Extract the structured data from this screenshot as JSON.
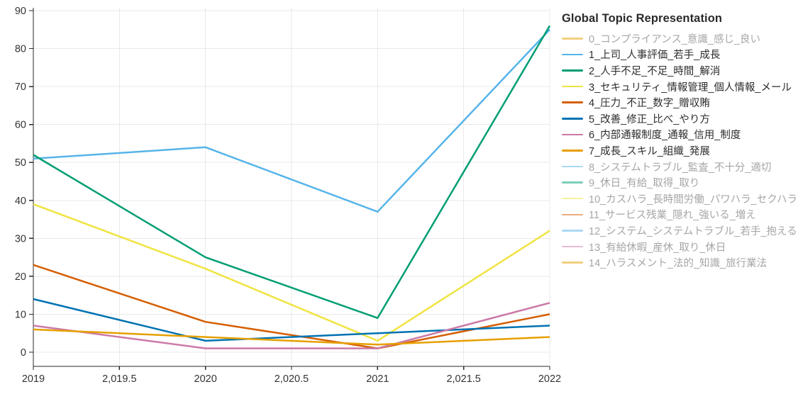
{
  "chart_data": {
    "type": "line",
    "legend_title": "Global Topic Representation",
    "x": [
      2019,
      2020,
      2021,
      2022
    ],
    "x_tick_values": [
      2019,
      2019.5,
      2020,
      2020.5,
      2021,
      2021.5,
      2022
    ],
    "x_tick_labels": [
      "2019",
      "2,019.5",
      "2020",
      "2,020.5",
      "2021",
      "2,021.5",
      "2022"
    ],
    "y_tick_values": [
      0,
      10,
      20,
      30,
      40,
      50,
      60,
      70,
      80,
      90
    ],
    "y_tick_labels": [
      "0",
      "10",
      "20",
      "30",
      "40",
      "50",
      "60",
      "70",
      "80",
      "90"
    ],
    "xlim": [
      2019,
      2022
    ],
    "ylim": [
      -3.7,
      90.7
    ],
    "grid": true,
    "legend_position": "right",
    "series": [
      {
        "name": "0_コンプライアンス_意識_感じ_良い",
        "color": "#E69F00",
        "visible": false,
        "values": null
      },
      {
        "name": "1_上司_人事評価_若手_成長",
        "color": "#56B4E9",
        "visible": true,
        "values": [
          51,
          54,
          37,
          85
        ]
      },
      {
        "name": "2_人手不足_不足_時間_解消",
        "color": "#009E73",
        "visible": true,
        "values": [
          52,
          25,
          9,
          86
        ]
      },
      {
        "name": "3_セキュリティ_情報管理_個人情報_メール",
        "color": "#F0E442",
        "visible": true,
        "values": [
          39,
          22,
          3,
          32
        ]
      },
      {
        "name": "4_圧力_不正_数字_贈収賄",
        "color": "#D55E00",
        "visible": true,
        "values": [
          23,
          8,
          1,
          10
        ]
      },
      {
        "name": "5_改善_修正_比べ_やり方",
        "color": "#0072B2",
        "visible": true,
        "values": [
          14,
          3,
          5,
          7
        ]
      },
      {
        "name": "6_内部通報制度_通報_信用_制度",
        "color": "#CC79A7",
        "visible": true,
        "values": [
          7,
          1,
          1,
          13
        ]
      },
      {
        "name": "7_成長_スキル_組織_発展",
        "color": "#E69F00",
        "visible": true,
        "values": [
          6,
          4,
          2,
          4
        ]
      },
      {
        "name": "8_システムトラブル_監査_不十分_適切",
        "color": "#56B4E9",
        "visible": false,
        "values": null
      },
      {
        "name": "9_休日_有給_取得_取り",
        "color": "#009E73",
        "visible": false,
        "values": null
      },
      {
        "name": "10_カスハラ_長時間労働_パワハラ_セクハラ",
        "color": "#F0E442",
        "visible": false,
        "values": null
      },
      {
        "name": "11_サービス残業_隠れ_強いる_増え",
        "color": "#D55E00",
        "visible": false,
        "values": null
      },
      {
        "name": "12_システム_システムトラブル_若手_抱える",
        "color": "#56B4E9",
        "visible": false,
        "values": null
      },
      {
        "name": "13_有給休暇_産休_取り_休日",
        "color": "#CC79A7",
        "visible": false,
        "values": null
      },
      {
        "name": "14_ハラスメント_法的_知識_旅行業法",
        "color": "#E69F00",
        "visible": false,
        "values": null
      }
    ]
  },
  "colors": {
    "background": "#ffffff",
    "gridline": "#e9e9e9",
    "axis_line": "#2a2a2a",
    "tick_label": "#333333",
    "legend_text_active": "#2d2d2d",
    "legend_text_muted": "#a6a6a6"
  }
}
